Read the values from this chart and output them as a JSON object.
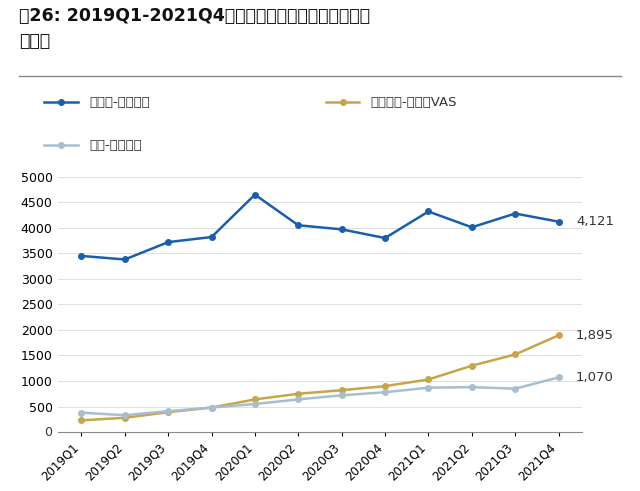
{
  "title_line1": "图26: 2019Q1-2021Q4头部中长视频平台会员收入（百",
  "title_line2": "万元）",
  "x_labels": [
    "2019Q1",
    "2019Q2",
    "2019Q3",
    "2019Q4",
    "2020Q1",
    "2020Q2",
    "2020Q3",
    "2020Q4",
    "2021Q1",
    "2021Q2",
    "2021Q3",
    "2021Q4"
  ],
  "iqiyi_values": [
    3450,
    3380,
    3720,
    3820,
    4650,
    4050,
    3970,
    3800,
    4320,
    4010,
    4280,
    4121
  ],
  "bilibili_values": [
    230,
    280,
    390,
    480,
    640,
    750,
    820,
    900,
    1030,
    1300,
    1520,
    1895
  ],
  "mango_values": [
    380,
    330,
    410,
    480,
    550,
    640,
    720,
    780,
    870,
    880,
    850,
    1070
  ],
  "iqiyi_color": "#1b5faa",
  "bilibili_color": "#c8a44a",
  "mango_color": "#a8bece",
  "iqiyi_label": "爱奇艺-会员收入",
  "bilibili_label": "哔哩哔哩-直播和VAS",
  "mango_label": "芒果-会员收入",
  "end_labels": [
    "4,121",
    "1,895",
    "1,070"
  ],
  "ylim": [
    0,
    5000
  ],
  "yticks": [
    0,
    500,
    1000,
    1500,
    2000,
    2500,
    3000,
    3500,
    4000,
    4500,
    5000
  ],
  "bg_color": "#ffffff",
  "spine_color": "#cccccc",
  "grid_color": "#e0e0e0"
}
